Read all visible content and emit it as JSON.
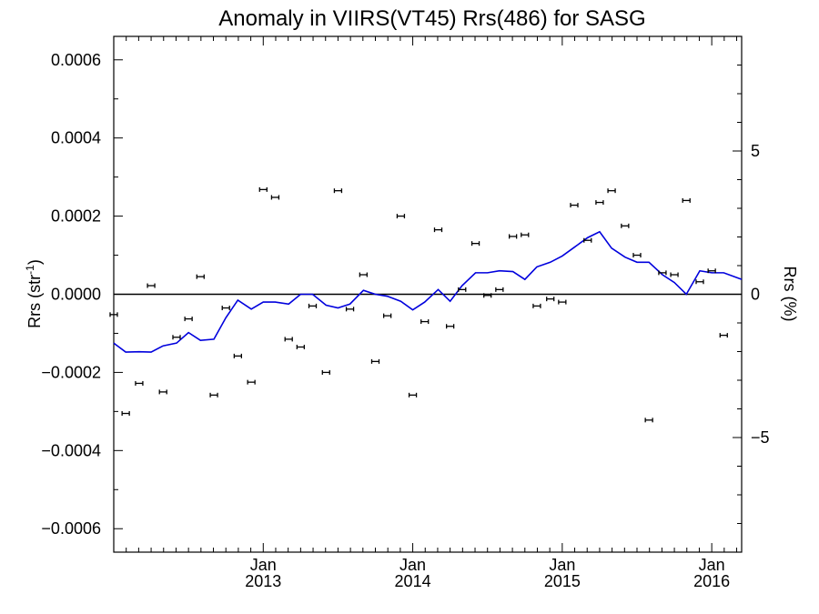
{
  "chart_data": {
    "type": "scatter",
    "title": "Anomaly in VIIRS(VT45) Rrs(486) for SASG",
    "ylabel_left": "Rrs (str",
    "ylabel_left_sup": "-1",
    "ylabel_left_end": ")",
    "ylabel_right": "Rrs (%)",
    "x_axis": {
      "min": 2012.0,
      "max": 2016.2,
      "ticks": [
        {
          "value": 2013.0,
          "month": "Jan",
          "year": "2013"
        },
        {
          "value": 2014.0,
          "month": "Jan",
          "year": "2014"
        },
        {
          "value": 2015.0,
          "month": "Jan",
          "year": "2015"
        },
        {
          "value": 2016.0,
          "month": "Jan",
          "year": "2016"
        }
      ]
    },
    "y_left": {
      "min": -0.00066,
      "max": 0.00066,
      "ticks": [
        {
          "value": 0.0006,
          "label": "0.0006"
        },
        {
          "value": 0.0004,
          "label": "0.0004"
        },
        {
          "value": 0.0002,
          "label": "0.0002"
        },
        {
          "value": 0.0,
          "label": "0.0000"
        },
        {
          "value": -0.0002,
          "label": "−0.0002"
        },
        {
          "value": -0.0004,
          "label": "−0.0004"
        },
        {
          "value": -0.0006,
          "label": "−0.0006"
        }
      ]
    },
    "y_right": {
      "min": -9.0,
      "max": 9.0,
      "ticks": [
        {
          "value": 5,
          "label": "5"
        },
        {
          "value": 0,
          "label": "0"
        },
        {
          "value": -5,
          "label": "−5"
        }
      ]
    },
    "series": [
      {
        "type": "scatter",
        "x": [
          2012.0,
          2012.08,
          2012.17,
          2012.25,
          2012.33,
          2012.42,
          2012.5,
          2012.58,
          2012.67,
          2012.75,
          2012.83,
          2012.92,
          2013.0,
          2013.08,
          2013.17,
          2013.25,
          2013.33,
          2013.42,
          2013.5,
          2013.58,
          2013.67,
          2013.75,
          2013.83,
          2013.92,
          2014.0,
          2014.08,
          2014.17,
          2014.25,
          2014.33,
          2014.42,
          2014.5,
          2014.58,
          2014.67,
          2014.75,
          2014.83,
          2014.92,
          2015.0,
          2015.08,
          2015.17,
          2015.25,
          2015.33,
          2015.42,
          2015.5,
          2015.58,
          2015.67,
          2015.75,
          2015.83,
          2015.92,
          2016.0,
          2016.08
        ],
        "y": [
          -5.2e-05,
          -0.000305,
          -0.000228,
          2.2e-05,
          -0.00025,
          -0.00011,
          -6.3e-05,
          4.5e-05,
          -0.000258,
          -3.5e-05,
          -0.000158,
          -0.000225,
          0.000268,
          0.000248,
          -0.000115,
          -0.000135,
          -3e-05,
          -0.0002,
          0.000265,
          -3.8e-05,
          5e-05,
          -0.000172,
          -5.5e-05,
          0.0002,
          -0.000258,
          -7e-05,
          0.000165,
          -8.2e-05,
          1.2e-05,
          0.00013,
          -3e-06,
          1.2e-05,
          0.000148,
          0.000152,
          -3e-05,
          -1.2e-05,
          -2e-05,
          0.000228,
          0.000138,
          0.000235,
          0.000265,
          0.000175,
          0.0001,
          -0.000322,
          5.5e-05,
          5e-05,
          0.00024,
          3.2e-05,
          6e-05,
          -0.000105
        ]
      },
      {
        "type": "line",
        "x": [
          2012.0,
          2012.08,
          2012.17,
          2012.25,
          2012.33,
          2012.42,
          2012.5,
          2012.58,
          2012.67,
          2012.75,
          2012.83,
          2012.92,
          2013.0,
          2013.08,
          2013.17,
          2013.25,
          2013.33,
          2013.42,
          2013.5,
          2013.58,
          2013.67,
          2013.75,
          2013.83,
          2013.92,
          2014.0,
          2014.08,
          2014.17,
          2014.25,
          2014.33,
          2014.42,
          2014.5,
          2014.58,
          2014.67,
          2014.75,
          2014.83,
          2014.92,
          2015.0,
          2015.08,
          2015.17,
          2015.25,
          2015.33,
          2015.42,
          2015.5,
          2015.58,
          2015.67,
          2015.75,
          2015.83,
          2015.92,
          2016.0,
          2016.08,
          2016.2
        ],
        "y": [
          -0.000125,
          -0.000148,
          -0.000147,
          -0.000148,
          -0.000132,
          -0.000125,
          -9.8e-05,
          -0.000118,
          -0.000115,
          -6e-05,
          -1.5e-05,
          -3.8e-05,
          -2e-05,
          -2e-05,
          -2.5e-05,
          0.0,
          0.0,
          -2.8e-05,
          -3.5e-05,
          -2.5e-05,
          1e-05,
          0.0,
          -5e-06,
          -1.8e-05,
          -4e-05,
          -2e-05,
          1.2e-05,
          -1.8e-05,
          2.2e-05,
          5.5e-05,
          5.5e-05,
          6e-05,
          5.8e-05,
          3.8e-05,
          7e-05,
          8.2e-05,
          9.8e-05,
          0.00012,
          0.000145,
          0.00016,
          0.000118,
          9.5e-05,
          8.2e-05,
          8.2e-05,
          5e-05,
          3e-05,
          0.0,
          6e-05,
          5.5e-05,
          5.5e-05,
          3.8e-05
        ]
      }
    ],
    "colors": {
      "points": "#000000",
      "trend": "#0000dd",
      "zero_line": "#000000"
    }
  }
}
